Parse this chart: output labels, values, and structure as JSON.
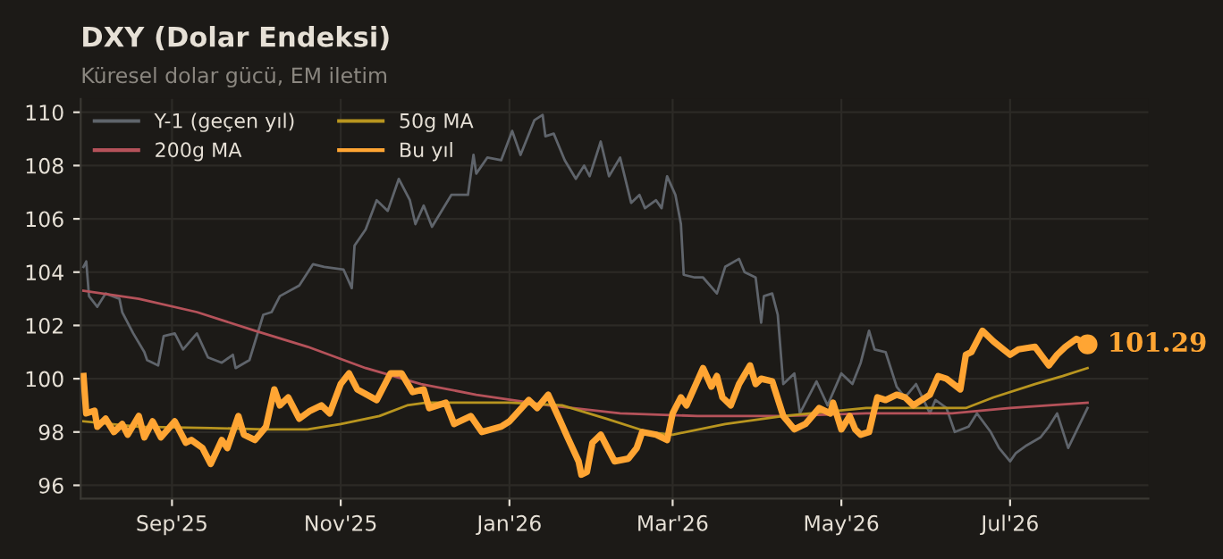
{
  "chart_data": {
    "type": "line",
    "title": "DXY (Dolar Endeksi)",
    "subtitle": "Küresel dolar gücü, EM iletim",
    "xlim": [
      "2025-07-30",
      "2026-08-20"
    ],
    "ylim": [
      95.5,
      110.5
    ],
    "xticks": [
      {
        "value": "2025-09-01",
        "label": "Sep'25"
      },
      {
        "value": "2025-11-01",
        "label": "Nov'25"
      },
      {
        "value": "2026-01-01",
        "label": "Jan'26"
      },
      {
        "value": "2026-03-01",
        "label": "Mar'26"
      },
      {
        "value": "2026-05-01",
        "label": "May'26"
      },
      {
        "value": "2026-07-01",
        "label": "Jul'26"
      }
    ],
    "yticks": [
      96,
      98,
      100,
      102,
      104,
      106,
      108,
      110
    ],
    "grid": true,
    "legend": "top left",
    "series": [
      {
        "name": "Y-1 (geçen yıl)",
        "color": "#5f646b",
        "x": [
          "2025-07-31",
          "2025-08-01",
          "2025-08-02",
          "2025-08-05",
          "2025-08-08",
          "2025-08-13",
          "2025-08-14",
          "2025-08-18",
          "2025-08-22",
          "2025-08-23",
          "2025-08-27",
          "2025-08-29",
          "2025-09-02",
          "2025-09-05",
          "2025-09-10",
          "2025-09-14",
          "2025-09-19",
          "2025-09-23",
          "2025-09-24",
          "2025-09-29",
          "2025-10-04",
          "2025-10-07",
          "2025-10-10",
          "2025-10-17",
          "2025-10-22",
          "2025-10-26",
          "2025-11-02",
          "2025-11-05",
          "2025-11-06",
          "2025-11-10",
          "2025-11-14",
          "2025-11-18",
          "2025-11-22",
          "2025-11-26",
          "2025-11-28",
          "2025-12-01",
          "2025-12-04",
          "2025-12-11",
          "2025-12-17",
          "2025-12-19",
          "2025-12-20",
          "2025-12-24",
          "2025-12-29",
          "2026-01-02",
          "2026-01-05",
          "2026-01-10",
          "2026-01-13",
          "2026-01-14",
          "2026-01-17",
          "2026-01-21",
          "2026-01-25",
          "2026-01-28",
          "2026-01-30",
          "2026-02-03",
          "2026-02-06",
          "2026-02-10",
          "2026-02-14",
          "2026-02-17",
          "2026-02-19",
          "2026-02-23",
          "2026-02-25",
          "2026-02-27",
          "2026-03-02",
          "2026-03-04",
          "2026-03-05",
          "2026-03-09",
          "2026-03-12",
          "2026-03-17",
          "2026-03-20",
          "2026-03-25",
          "2026-03-27",
          "2026-03-31",
          "2026-04-02",
          "2026-04-03",
          "2026-04-06",
          "2026-04-08",
          "2026-04-10",
          "2026-04-14",
          "2026-04-16",
          "2026-04-22",
          "2026-04-26",
          "2026-05-01",
          "2026-05-05",
          "2026-05-08",
          "2026-05-11",
          "2026-05-13",
          "2026-05-17",
          "2026-05-21",
          "2026-05-24",
          "2026-05-28",
          "2026-06-02",
          "2026-06-04",
          "2026-06-08",
          "2026-06-11",
          "2026-06-16",
          "2026-06-19",
          "2026-06-24",
          "2026-06-27",
          "2026-07-01",
          "2026-07-03",
          "2026-07-07",
          "2026-07-12",
          "2026-07-15",
          "2026-07-18",
          "2026-07-22",
          "2026-07-29"
        ],
        "values": [
          104.2,
          104.4,
          103.1,
          102.7,
          103.2,
          103.0,
          102.5,
          101.7,
          101.0,
          100.7,
          100.5,
          101.6,
          101.7,
          101.1,
          101.7,
          100.8,
          100.6,
          100.9,
          100.4,
          100.7,
          102.4,
          102.5,
          103.1,
          103.5,
          104.3,
          104.2,
          104.1,
          103.4,
          105.0,
          105.6,
          106.7,
          106.3,
          107.5,
          106.7,
          105.8,
          106.5,
          105.7,
          106.9,
          106.9,
          108.4,
          107.7,
          108.3,
          108.2,
          109.3,
          108.4,
          109.7,
          109.9,
          109.1,
          109.2,
          108.2,
          107.5,
          108.0,
          107.6,
          108.9,
          107.6,
          108.3,
          106.6,
          106.9,
          106.4,
          106.7,
          106.4,
          107.6,
          106.9,
          105.8,
          103.9,
          103.8,
          103.8,
          103.2,
          104.2,
          104.5,
          104.0,
          103.8,
          102.1,
          103.1,
          103.2,
          102.4,
          99.8,
          100.2,
          98.7,
          99.9,
          99.0,
          100.2,
          99.8,
          100.6,
          101.8,
          101.1,
          101.0,
          99.7,
          99.3,
          99.8,
          98.7,
          99.2,
          98.9,
          98.0,
          98.2,
          98.7,
          98.0,
          97.4,
          96.9,
          97.2,
          97.5,
          97.8,
          98.2,
          98.7,
          97.4,
          98.9
        ]
      },
      {
        "name": "200g MA",
        "color": "#b5525a",
        "x": [
          "2025-07-31",
          "2025-08-20",
          "2025-09-10",
          "2025-10-01",
          "2025-10-20",
          "2025-11-10",
          "2025-11-30",
          "2025-12-20",
          "2026-01-15",
          "2026-02-10",
          "2026-03-10",
          "2026-04-10",
          "2026-05-10",
          "2026-06-10",
          "2026-07-01",
          "2026-07-29"
        ],
        "values": [
          103.3,
          103.0,
          102.5,
          101.8,
          101.2,
          100.4,
          99.8,
          99.4,
          99.0,
          98.7,
          98.6,
          98.6,
          98.7,
          98.7,
          98.9,
          99.1
        ]
      },
      {
        "name": "50g MA",
        "color": "#b8951f",
        "x": [
          "2025-07-31",
          "2025-08-20",
          "2025-09-15",
          "2025-10-05",
          "2025-10-20",
          "2025-11-01",
          "2025-11-15",
          "2025-11-25",
          "2025-12-02",
          "2026-01-01",
          "2026-01-20",
          "2026-02-05",
          "2026-02-20",
          "2026-03-01",
          "2026-03-20",
          "2026-04-10",
          "2026-05-10",
          "2026-06-15",
          "2026-06-25",
          "2026-07-10",
          "2026-07-20",
          "2026-07-29"
        ],
        "values": [
          98.4,
          98.2,
          98.15,
          98.1,
          98.1,
          98.3,
          98.6,
          99.0,
          99.1,
          99.1,
          99.0,
          98.5,
          98.0,
          97.9,
          98.3,
          98.6,
          98.9,
          98.9,
          99.3,
          99.8,
          100.1,
          100.4
        ]
      },
      {
        "name": "Bu yıl",
        "color": "#ffa533",
        "x": [
          "2025-07-31",
          "2025-08-01",
          "2025-08-04",
          "2025-08-05",
          "2025-08-08",
          "2025-08-11",
          "2025-08-14",
          "2025-08-16",
          "2025-08-20",
          "2025-08-22",
          "2025-08-25",
          "2025-08-28",
          "2025-09-02",
          "2025-09-06",
          "2025-09-08",
          "2025-09-12",
          "2025-09-15",
          "2025-09-19",
          "2025-09-21",
          "2025-09-25",
          "2025-09-27",
          "2025-10-01",
          "2025-10-05",
          "2025-10-08",
          "2025-10-10",
          "2025-10-13",
          "2025-10-17",
          "2025-10-21",
          "2025-10-25",
          "2025-10-28",
          "2025-11-01",
          "2025-11-04",
          "2025-11-07",
          "2025-11-14",
          "2025-11-19",
          "2025-11-23",
          "2025-11-27",
          "2025-12-01",
          "2025-12-03",
          "2025-12-09",
          "2025-12-12",
          "2025-12-18",
          "2025-12-22",
          "2025-12-29",
          "2026-01-01",
          "2026-01-08",
          "2026-01-11",
          "2026-01-15",
          "2026-01-19",
          "2026-01-22",
          "2026-01-26",
          "2026-01-27",
          "2026-01-29",
          "2026-01-31",
          "2026-02-03",
          "2026-02-05",
          "2026-02-08",
          "2026-02-13",
          "2026-02-16",
          "2026-02-18",
          "2026-02-23",
          "2026-02-27",
          "2026-03-01",
          "2026-03-04",
          "2026-03-06",
          "2026-03-12",
          "2026-03-15",
          "2026-03-17",
          "2026-03-19",
          "2026-03-22",
          "2026-03-25",
          "2026-03-29",
          "2026-03-31",
          "2026-04-02",
          "2026-04-06",
          "2026-04-10",
          "2026-04-14",
          "2026-04-18",
          "2026-04-23",
          "2026-04-27",
          "2026-04-28",
          "2026-05-01",
          "2026-05-04",
          "2026-05-06",
          "2026-05-08",
          "2026-05-11",
          "2026-05-14",
          "2026-05-17",
          "2026-05-21",
          "2026-05-24",
          "2026-05-27",
          "2026-06-02",
          "2026-06-05",
          "2026-06-08",
          "2026-06-13",
          "2026-06-15",
          "2026-06-17",
          "2026-06-21",
          "2026-06-25",
          "2026-07-01",
          "2026-07-04",
          "2026-07-10",
          "2026-07-15",
          "2026-07-18",
          "2026-07-21",
          "2026-07-25",
          "2026-07-29"
        ],
        "values": [
          100.1,
          98.7,
          98.8,
          98.2,
          98.5,
          98.0,
          98.3,
          97.9,
          98.6,
          97.8,
          98.4,
          97.8,
          98.4,
          97.6,
          97.7,
          97.4,
          96.8,
          97.7,
          97.4,
          98.6,
          97.9,
          97.7,
          98.2,
          99.6,
          99.0,
          99.3,
          98.5,
          98.8,
          99.0,
          98.7,
          99.8,
          100.2,
          99.6,
          99.2,
          100.2,
          100.2,
          99.5,
          99.6,
          98.9,
          99.1,
          98.3,
          98.6,
          98.0,
          98.2,
          98.4,
          99.2,
          98.9,
          99.4,
          98.5,
          97.8,
          96.9,
          96.4,
          96.5,
          97.6,
          97.9,
          97.5,
          96.9,
          97.0,
          97.4,
          98.0,
          97.9,
          97.7,
          98.7,
          99.3,
          99.0,
          100.4,
          99.7,
          100.1,
          99.3,
          99.0,
          99.8,
          100.5,
          99.8,
          100.0,
          99.9,
          98.6,
          98.1,
          98.3,
          98.9,
          98.7,
          99.1,
          98.1,
          98.6,
          98.1,
          97.9,
          98.0,
          99.3,
          99.2,
          99.4,
          99.3,
          99.0,
          99.4,
          100.1,
          100.0,
          99.6,
          100.9,
          101.0,
          101.8,
          101.4,
          100.9,
          101.1,
          101.2,
          100.5,
          100.9,
          101.2,
          101.5,
          101.29
        ]
      }
    ],
    "annotations": [
      {
        "text": "101.29",
        "x": "2026-07-29",
        "y": 101.29
      }
    ]
  }
}
